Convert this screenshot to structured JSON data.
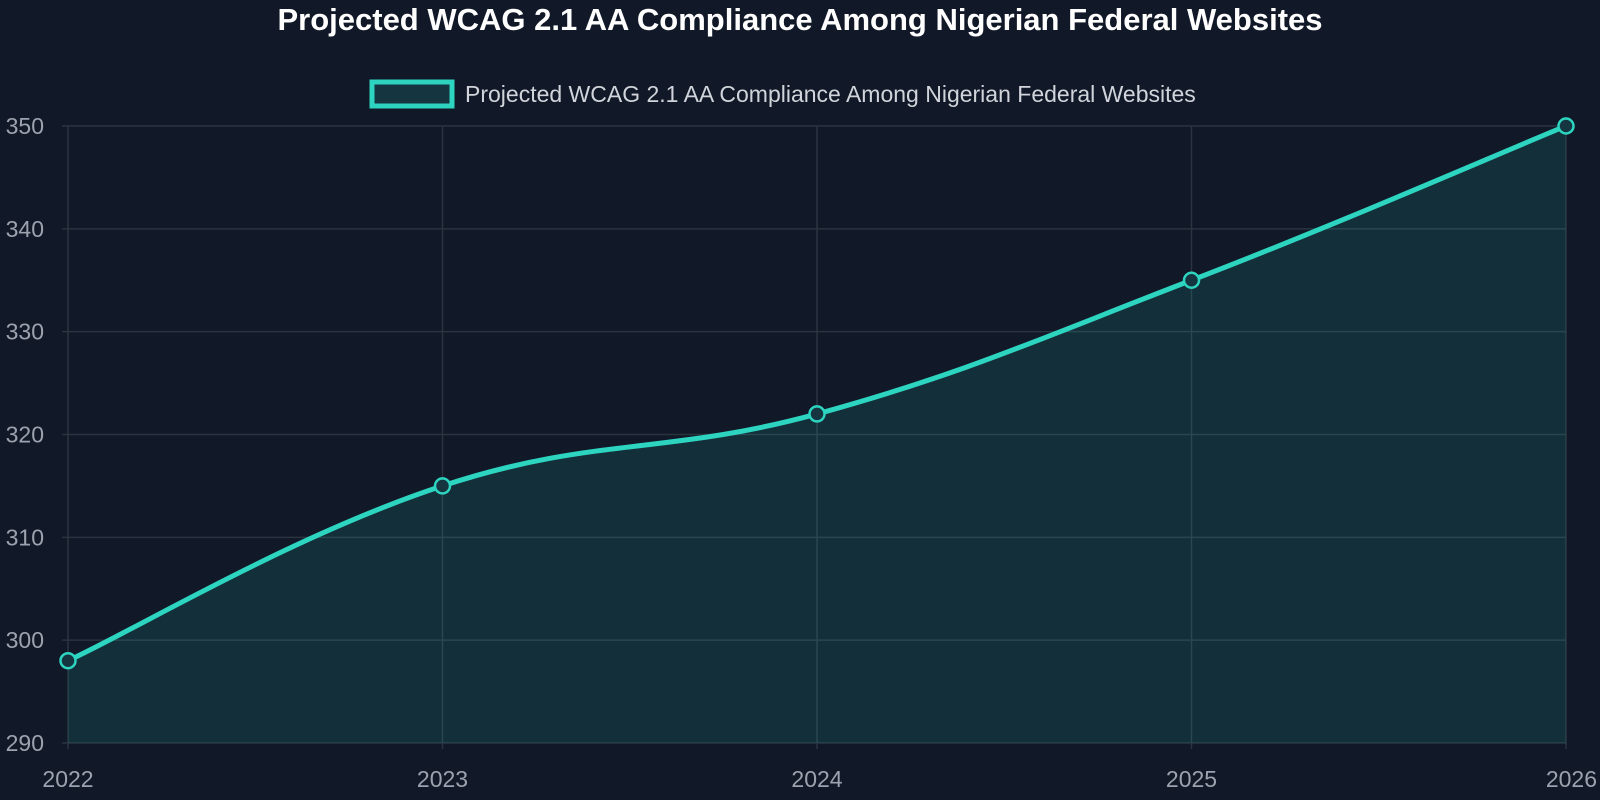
{
  "chart_data": {
    "type": "area",
    "title": "Projected WCAG 2.1 AA Compliance Among Nigerian Federal Websites",
    "xlabel": "",
    "ylabel": "",
    "x": [
      "2022",
      "2023",
      "2024",
      "2025",
      "2026"
    ],
    "series": [
      {
        "name": "Projected WCAG 2.1 AA Compliance Among Nigerian Federal Websites",
        "values": [
          298,
          315,
          322,
          335,
          350
        ]
      }
    ],
    "ylim": [
      290,
      350
    ],
    "yticks": [
      290,
      300,
      310,
      320,
      330,
      340,
      350
    ],
    "grid": true,
    "legend_position": "top-center",
    "colors": {
      "background": "#111827",
      "line": "#2dd4bf",
      "fill": "#153540",
      "grid": "#2a3441",
      "tick_text": "#9ca3af",
      "legend_text": "#d1d5db",
      "title": "#ffffff"
    }
  }
}
